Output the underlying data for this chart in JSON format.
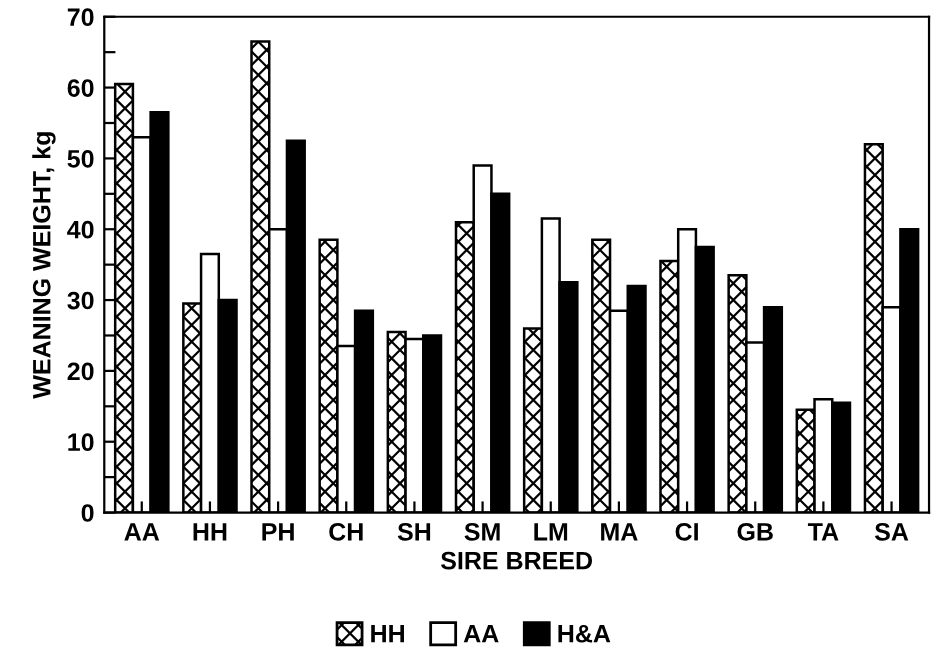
{
  "chart_data": {
    "type": "bar",
    "xlabel": "SIRE BREED",
    "ylabel": "WEANING WEIGHT, kg",
    "categories": [
      "AA",
      "HH",
      "PH",
      "CH",
      "SH",
      "SM",
      "LM",
      "MA",
      "CI",
      "GB",
      "TA",
      "SA"
    ],
    "series": [
      {
        "name": "HH",
        "color": "#000000",
        "values": [
          60.5,
          29.5,
          66.5,
          38.5,
          25.5,
          41,
          26,
          38.5,
          35.5,
          33.5,
          14.5,
          52
        ]
      },
      {
        "name": "AA",
        "color": "#ffffff",
        "values": [
          53,
          36.5,
          40,
          23.5,
          24.5,
          49,
          41.5,
          28.5,
          40,
          24,
          16,
          29
        ]
      },
      {
        "name": "H&A",
        "color": "#000000",
        "values": [
          56.5,
          30,
          52.5,
          28.5,
          25,
          45,
          32.5,
          32,
          37.5,
          29,
          15.5,
          40
        ]
      }
    ],
    "ylim": [
      0,
      70
    ],
    "yticks": [
      0,
      {
        "value": 5,
        "label": null
      },
      10,
      {
        "value": 15,
        "label": null
      },
      20,
      {
        "value": 25,
        "label": null
      },
      30,
      {
        "value": 35,
        "label": null
      },
      40,
      {
        "value": 45,
        "label": null
      },
      50,
      {
        "value": 55,
        "label": null
      },
      60,
      {
        "value": 65,
        "label": null
      },
      70
    ],
    "grid": false,
    "legend": "bottom"
  }
}
